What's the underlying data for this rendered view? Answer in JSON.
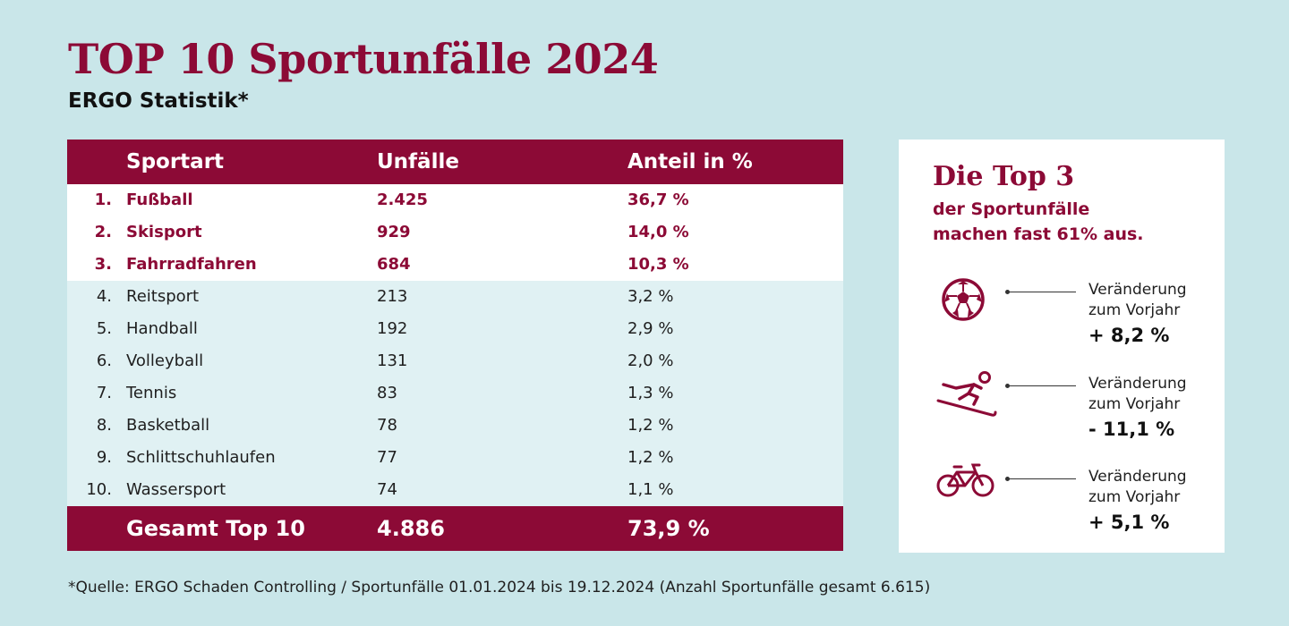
{
  "title": "TOP 10 Sportunfälle 2024",
  "subtitle": "ERGO Statistik*",
  "colors": {
    "brand": "#8c0a36",
    "background": "#c9e6e9",
    "row_tint": "#e0f1f3"
  },
  "chart_data": {
    "type": "table",
    "title": "TOP 10 Sportunfälle 2024",
    "columns": [
      "Sportart",
      "Unfälle",
      "Anteil in %"
    ],
    "rows": [
      {
        "rank": "1.",
        "sport": "Fußball",
        "count": "2.425",
        "share": "36,7 %"
      },
      {
        "rank": "2.",
        "sport": "Skisport",
        "count": "929",
        "share": "14,0 %"
      },
      {
        "rank": "3.",
        "sport": "Fahrradfahren",
        "count": "684",
        "share": "10,3 %"
      },
      {
        "rank": "4.",
        "sport": "Reitsport",
        "count": "213",
        "share": "3,2 %"
      },
      {
        "rank": "5.",
        "sport": "Handball",
        "count": "192",
        "share": "2,9 %"
      },
      {
        "rank": "6.",
        "sport": "Volleyball",
        "count": "131",
        "share": "2,0 %"
      },
      {
        "rank": "7.",
        "sport": "Tennis",
        "count": "83",
        "share": "1,3 %"
      },
      {
        "rank": "8.",
        "sport": "Basketball",
        "count": "78",
        "share": "1,2 %"
      },
      {
        "rank": "9.",
        "sport": "Schlittschuhlaufen",
        "count": "77",
        "share": "1,2 %"
      },
      {
        "rank": "10.",
        "sport": "Wassersport",
        "count": "74",
        "share": "1,1 %"
      }
    ],
    "total": {
      "label": "Gesamt Top 10",
      "count": "4.886",
      "share": "73,9 %"
    }
  },
  "top3_panel": {
    "title": "Die Top 3",
    "line1": "der Sportunfälle",
    "line2": "machen fast 61% aus.",
    "items": [
      {
        "icon": "soccer-ball-icon",
        "label1": "Veränderung",
        "label2": "zum Vorjahr",
        "value": "+ 8,2 %"
      },
      {
        "icon": "skier-icon",
        "label1": "Veränderung",
        "label2": "zum Vorjahr",
        "value": "- 11,1 %"
      },
      {
        "icon": "bicycle-icon",
        "label1": "Veränderung",
        "label2": "zum Vorjahr",
        "value": "+ 5,1 %"
      }
    ]
  },
  "footnote": "*Quelle: ERGO Schaden Controlling / Sportunfälle 01.01.2024 bis 19.12.2024 (Anzahl Sportunfälle gesamt 6.615)"
}
